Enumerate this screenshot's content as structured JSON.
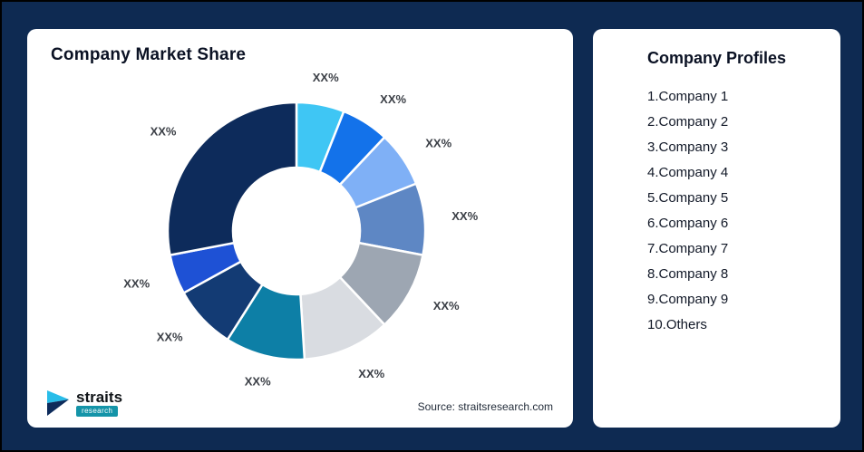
{
  "left_card": {
    "title": "Company Market Share",
    "source": "Source: straitsresearch.com"
  },
  "logo": {
    "name": "straits",
    "sub": "research"
  },
  "profiles": {
    "title": "Company Profiles",
    "items": [
      "1.Company 1",
      "2.Company 2",
      "3.Company 3",
      "4.Company 4",
      "5.Company 5",
      "6.Company 6",
      "7.Company 7",
      "8.Company 8",
      "9.Company 9",
      "10.Others"
    ]
  },
  "chart_data": {
    "type": "pie",
    "subtype": "donut",
    "title": "Company Market Share",
    "legend_position": "none",
    "label_text_all_slices": "XX%",
    "slices": [
      {
        "label": "XX%",
        "value": 6,
        "color": "#3FC6F4"
      },
      {
        "label": "XX%",
        "value": 6,
        "color": "#1372EA"
      },
      {
        "label": "XX%",
        "value": 7,
        "color": "#7FB0F6"
      },
      {
        "label": "XX%",
        "value": 9,
        "color": "#5E87C4"
      },
      {
        "label": "XX%",
        "value": 10,
        "color": "#9DA6B2"
      },
      {
        "label": "XX%",
        "value": 11,
        "color": "#D9DCE1"
      },
      {
        "label": "XX%",
        "value": 10,
        "color": "#0D7FA6"
      },
      {
        "label": "XX%",
        "value": 8,
        "color": "#133B74"
      },
      {
        "label": "XX%",
        "value": 5,
        "color": "#1E51D5"
      },
      {
        "label": "XX%",
        "value": 28,
        "color": "#0D2B5B"
      }
    ]
  }
}
